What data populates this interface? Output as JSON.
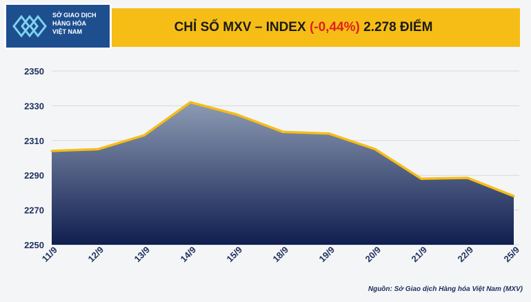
{
  "logo": {
    "lines": [
      "SỞ GIAO DỊCH",
      "HÀNG HÓA",
      "VIỆT NAM"
    ]
  },
  "title": {
    "prefix": "CHỈ SỐ MXV – INDEX",
    "change": "(-0,44%)",
    "value": "2.278 ĐIỂM"
  },
  "source": "Nguồn: Sở Giao dịch Hàng hóa Việt Nam (MXV)",
  "colors": {
    "header_band": "#f6bd16",
    "line": "#f6bd16",
    "area_top": "#8e9bb4",
    "area_bottom": "#0f1e50",
    "negative_change": "#e02020"
  },
  "chart_data": {
    "type": "area",
    "categories": [
      "11/9",
      "12/9",
      "13/9",
      "14/9",
      "15/9",
      "18/9",
      "19/9",
      "20/9",
      "21/9",
      "22/9",
      "25/9"
    ],
    "series": [
      {
        "values": [
          2304,
          2305,
          2313,
          2332,
          2325,
          2315,
          2314,
          2305,
          2288,
          2288.5,
          2278
        ]
      }
    ],
    "yticks": [
      2250,
      2270,
      2290,
      2310,
      2330,
      2350
    ],
    "ylim": [
      2250,
      2350
    ],
    "grid": true,
    "legend": "none"
  }
}
